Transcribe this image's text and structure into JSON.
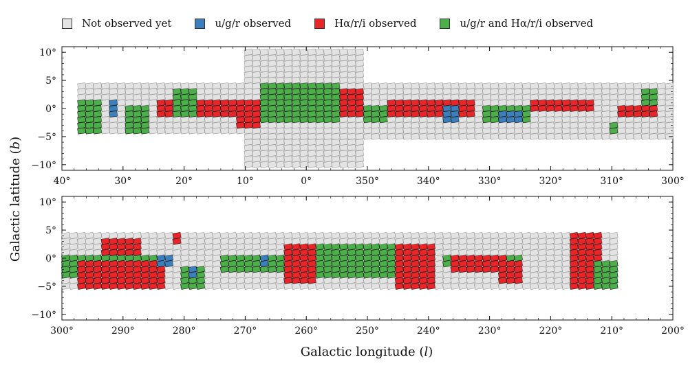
{
  "chart_data": {
    "type": "heatmap",
    "legend": [
      {
        "label": "Not observed yet",
        "color": "#e3e3e3"
      },
      {
        "label": "u/g/r observed",
        "color": "#3b7fbd"
      },
      {
        "label": "Hα/r/i observed",
        "color": "#e8262a"
      },
      {
        "label": "u/g/r and Hα/r/i observed",
        "color": "#4caf4a"
      }
    ],
    "xlabel_prefix": "Galactic longitude (",
    "xlabel_var": "l",
    "xlabel_suffix": ")",
    "ylabel_prefix": "Galactic latitude (",
    "ylabel_var": "b",
    "ylabel_suffix": ")",
    "panels": [
      {
        "xlim": [
          40,
          300
        ],
        "ylim": [
          -11,
          11
        ],
        "x_ticks": [
          40,
          30,
          20,
          10,
          0,
          350,
          340,
          330,
          320,
          310,
          300
        ],
        "x_tick_labels": [
          "40°",
          "30°",
          "20°",
          "10°",
          "0°",
          "350°",
          "340°",
          "330°",
          "320°",
          "310°",
          "300°"
        ],
        "y_ticks": [
          10,
          5,
          0,
          -5,
          -10
        ],
        "y_tick_labels": [
          "10°",
          "5°",
          "0°",
          "−5°",
          "−10°"
        ],
        "footprint": [
          {
            "l_from": 38,
            "l_to": 10,
            "b_low": -4.5,
            "b_high": 4.5
          },
          {
            "l_from": 10,
            "l_to": -10,
            "b_low": -10,
            "b_high": 10
          },
          {
            "l_from": -10,
            "l_to": -60,
            "b_low": -5,
            "b_high": 4
          }
        ],
        "observed": [
          {
            "status": "ugr+ha",
            "l_from": 37.5,
            "l_to": 33,
            "b_low": -4.5,
            "b_high": 1
          },
          {
            "status": "ugr",
            "l_from": 32,
            "l_to": 30.5,
            "b_low": -1,
            "b_high": 1
          },
          {
            "status": "ugr+ha",
            "l_from": 30,
            "l_to": 26,
            "b_low": -4,
            "b_high": 0.5
          },
          {
            "status": "ha",
            "l_from": 25,
            "l_to": 22,
            "b_low": -1,
            "b_high": 1
          },
          {
            "status": "ugr+ha",
            "l_from": 22,
            "l_to": 18,
            "b_low": -1.5,
            "b_high": 3
          },
          {
            "status": "ha",
            "l_from": 18,
            "l_to": 12,
            "b_low": -1,
            "b_high": 1
          },
          {
            "status": "ugr",
            "l_from": 12,
            "l_to": 11,
            "b_low": -0.5,
            "b_high": 1
          },
          {
            "status": "ha",
            "l_from": 11,
            "l_to": 7,
            "b_low": -3,
            "b_high": 1
          },
          {
            "status": "ugr+ha",
            "l_from": 7,
            "l_to": -5,
            "b_low": -2,
            "b_high": 4.5
          },
          {
            "status": "ha",
            "l_from": -5,
            "l_to": -10,
            "b_low": -1,
            "b_high": 3.5
          },
          {
            "status": "ugr+ha",
            "l_from": -10,
            "l_to": -13,
            "b_low": -2.5,
            "b_high": 0.5
          },
          {
            "status": "ha",
            "l_from": -13,
            "l_to": -27,
            "b_low": -1,
            "b_high": 1.5
          },
          {
            "status": "ugr",
            "l_from": -23,
            "l_to": -25,
            "b_low": -2,
            "b_high": 0
          },
          {
            "status": "ugr+ha",
            "l_from": -29,
            "l_to": -37,
            "b_low": -2.5,
            "b_high": 0.5
          },
          {
            "status": "ugr",
            "l_from": -32,
            "l_to": -35,
            "b_low": -2.5,
            "b_high": -0.5
          },
          {
            "status": "ha",
            "l_from": -37,
            "l_to": -47,
            "b_low": -0.5,
            "b_high": 1
          },
          {
            "status": "ha",
            "l_from": -51,
            "l_to": -58,
            "b_low": -1.5,
            "b_high": 0.5
          },
          {
            "status": "ugr+ha",
            "l_from": -55,
            "l_to": -58,
            "b_low": 0.5,
            "b_high": 3
          },
          {
            "status": "ugr+ha",
            "l_from": -50,
            "l_to": -51,
            "b_low": -4,
            "b_high": -2.5
          }
        ]
      },
      {
        "xlim": [
          300,
          200
        ],
        "ylim": [
          -11,
          11
        ],
        "x_ticks": [
          300,
          290,
          280,
          270,
          260,
          250,
          240,
          230,
          220,
          210,
          200
        ],
        "x_tick_labels": [
          "300°",
          "290°",
          "280°",
          "270°",
          "260°",
          "250°",
          "240°",
          "230°",
          "220°",
          "210°",
          "200°"
        ],
        "y_ticks": [
          10,
          5,
          0,
          -5,
          -10
        ],
        "y_tick_labels": [
          "10°",
          "5°",
          "0°",
          "−5°",
          "−10°"
        ],
        "footprint": [
          {
            "l_from": 300,
            "l_to": 209,
            "b_low": -5,
            "b_high": 4.5
          }
        ],
        "observed": [
          {
            "status": "ugr+ha",
            "l_from": 300,
            "l_to": 284,
            "b_low": -3,
            "b_high": 0.5
          },
          {
            "status": "ha",
            "l_from": 297,
            "l_to": 283,
            "b_low": -5,
            "b_high": -1
          },
          {
            "status": "ha",
            "l_from": 293,
            "l_to": 287,
            "b_low": 1,
            "b_high": 3.5
          },
          {
            "status": "ugr",
            "l_from": 284,
            "l_to": 282,
            "b_low": -1.5,
            "b_high": 0
          },
          {
            "status": "ha",
            "l_from": 282,
            "l_to": 280,
            "b_low": 3,
            "b_high": 5
          },
          {
            "status": "ugr+ha",
            "l_from": 280,
            "l_to": 276,
            "b_low": -5.5,
            "b_high": -2
          },
          {
            "status": "ugr",
            "l_from": 279,
            "l_to": 278,
            "b_low": -3.5,
            "b_high": -2
          },
          {
            "status": "ugr+ha",
            "l_from": 274,
            "l_to": 258,
            "b_low": -2,
            "b_high": 0
          },
          {
            "status": "ugr",
            "l_from": 268,
            "l_to": 266,
            "b_low": -1,
            "b_high": 0
          },
          {
            "status": "ha",
            "l_from": 263,
            "l_to": 258,
            "b_low": -4,
            "b_high": 2
          },
          {
            "status": "ugr+ha",
            "l_from": 258,
            "l_to": 242,
            "b_low": -3,
            "b_high": 2
          },
          {
            "status": "ha",
            "l_from": 245,
            "l_to": 239,
            "b_low": -5,
            "b_high": 2
          },
          {
            "status": "ugr+ha",
            "l_from": 237,
            "l_to": 224,
            "b_low": -1.5,
            "b_high": 0
          },
          {
            "status": "ha",
            "l_from": 236,
            "l_to": 227,
            "b_low": -2,
            "b_high": 0
          },
          {
            "status": "ha",
            "l_from": 228,
            "l_to": 225,
            "b_low": -4.5,
            "b_high": -1
          },
          {
            "status": "ha",
            "l_from": 217,
            "l_to": 212,
            "b_low": -5,
            "b_high": 4
          },
          {
            "status": "ugr+ha",
            "l_from": 213,
            "l_to": 209,
            "b_low": -5,
            "b_high": -0.5
          }
        ]
      }
    ]
  }
}
